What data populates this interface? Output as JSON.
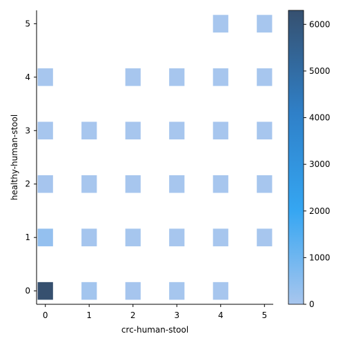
{
  "chart_data": {
    "type": "heatmap",
    "xlabel": "crc-human-stool",
    "ylabel": "healthy-human-stool",
    "x_ticks": [
      0,
      1,
      2,
      3,
      4,
      5
    ],
    "y_ticks": [
      0,
      1,
      2,
      3,
      4,
      5
    ],
    "xlim": [
      -0.2,
      5.2
    ],
    "ylim": [
      -0.25,
      5.25
    ],
    "bin_width": 0.35,
    "bin_height": 0.33,
    "colorbar": {
      "min": 0,
      "max": 6300,
      "ticks": [
        0,
        1000,
        2000,
        3000,
        4000,
        5000,
        6000
      ],
      "color_low": "#a8c6ee",
      "color_mid": "#35a6f2",
      "color_high": "#36506f"
    },
    "cells": [
      {
        "x": 0,
        "y": 0,
        "value": 6300
      },
      {
        "x": 1,
        "y": 0,
        "value": 80
      },
      {
        "x": 2,
        "y": 0,
        "value": 40
      },
      {
        "x": 3,
        "y": 0,
        "value": 30
      },
      {
        "x": 4,
        "y": 0,
        "value": 15
      },
      {
        "x": 0,
        "y": 1,
        "value": 350
      },
      {
        "x": 1,
        "y": 1,
        "value": 60
      },
      {
        "x": 2,
        "y": 1,
        "value": 30
      },
      {
        "x": 3,
        "y": 1,
        "value": 20
      },
      {
        "x": 4,
        "y": 1,
        "value": 15
      },
      {
        "x": 5,
        "y": 1,
        "value": 10
      },
      {
        "x": 0,
        "y": 2,
        "value": 40
      },
      {
        "x": 1,
        "y": 2,
        "value": 25
      },
      {
        "x": 2,
        "y": 2,
        "value": 20
      },
      {
        "x": 3,
        "y": 2,
        "value": 15
      },
      {
        "x": 4,
        "y": 2,
        "value": 10
      },
      {
        "x": 5,
        "y": 2,
        "value": 10
      },
      {
        "x": 0,
        "y": 3,
        "value": 25
      },
      {
        "x": 1,
        "y": 3,
        "value": 15
      },
      {
        "x": 2,
        "y": 3,
        "value": 10
      },
      {
        "x": 3,
        "y": 3,
        "value": 10
      },
      {
        "x": 4,
        "y": 3,
        "value": 10
      },
      {
        "x": 5,
        "y": 3,
        "value": 10
      },
      {
        "x": 0,
        "y": 4,
        "value": 15
      },
      {
        "x": 2,
        "y": 4,
        "value": 10
      },
      {
        "x": 3,
        "y": 4,
        "value": 10
      },
      {
        "x": 4,
        "y": 4,
        "value": 10
      },
      {
        "x": 5,
        "y": 4,
        "value": 10
      },
      {
        "x": 4,
        "y": 5,
        "value": 10
      },
      {
        "x": 5,
        "y": 5,
        "value": 10
      }
    ]
  }
}
